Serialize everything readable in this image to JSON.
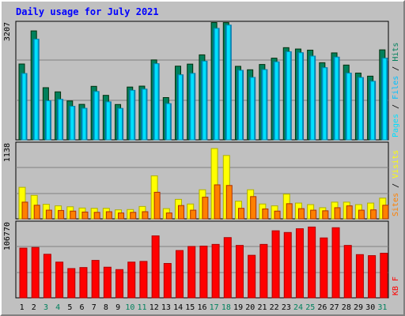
{
  "title": "Daily usage for July 2021",
  "colors": {
    "hits": "#00805c",
    "files": "#00c0ff",
    "pages": "#00e0ff",
    "visits": "#ffff00",
    "sites": "#ff8000",
    "kbf": "#ff0000",
    "plot_bg": "#c0c0c0",
    "weekend": "#00805c",
    "weekday": "#000000"
  },
  "chart_data": [
    {
      "type": "bar",
      "ymax_label": "3207",
      "ylim": [
        0,
        3207
      ],
      "legend": [
        "Pages",
        "Files",
        "Hits"
      ],
      "categories": [
        "1",
        "2",
        "3",
        "4",
        "5",
        "6",
        "7",
        "8",
        "9",
        "10",
        "11",
        "12",
        "13",
        "14",
        "15",
        "16",
        "17",
        "18",
        "19",
        "20",
        "21",
        "22",
        "23",
        "24",
        "25",
        "26",
        "27",
        "28",
        "29",
        "30",
        "31"
      ],
      "weekend_days": [
        "3",
        "4",
        "10",
        "11",
        "17",
        "18",
        "24",
        "25",
        "31"
      ],
      "series": [
        {
          "name": "Hits",
          "values": [
            2080,
            2988,
            1430,
            1316,
            1066,
            973,
            1467,
            1220,
            969,
            1448,
            1473,
            2192,
            1159,
            2021,
            2077,
            2331,
            3217,
            3216,
            2016,
            1922,
            2067,
            2240,
            2528,
            2491,
            2460,
            2115,
            2385,
            2051,
            1831,
            1747,
            2468
          ]
        },
        {
          "name": "Files",
          "values": [
            1820,
            2760,
            1070,
            1110,
            920,
            864,
            1325,
            1042,
            861,
            1357,
            1390,
            2088,
            992,
            1783,
            1822,
            2157,
            3057,
            3146,
            1906,
            1712,
            1925,
            2138,
            2417,
            2389,
            2296,
            1978,
            2268,
            1829,
            1708,
            1605,
            2238
          ]
        },
        {
          "name": "Pages",
          "values": [
            1820,
            2760,
            1070,
            1110,
            920,
            864,
            1325,
            1042,
            861,
            1357,
            1390,
            2088,
            992,
            1783,
            1822,
            2157,
            3057,
            3146,
            1906,
            1712,
            1925,
            2138,
            2417,
            2389,
            2296,
            1978,
            2268,
            1829,
            1708,
            1605,
            2238
          ]
        }
      ]
    },
    {
      "type": "bar",
      "ymax_label": "1138",
      "ylim": [
        0,
        1138
      ],
      "legend": [
        "Sites",
        "Visits"
      ],
      "categories": [
        "1",
        "2",
        "3",
        "4",
        "5",
        "6",
        "7",
        "8",
        "9",
        "10",
        "11",
        "12",
        "13",
        "14",
        "15",
        "16",
        "17",
        "18",
        "19",
        "20",
        "21",
        "22",
        "23",
        "24",
        "25",
        "26",
        "27",
        "28",
        "29",
        "30",
        "31"
      ],
      "series": [
        {
          "name": "Visits",
          "values": [
            510,
            380,
            235,
            210,
            195,
            175,
            170,
            170,
            145,
            150,
            200,
            695,
            165,
            315,
            240,
            470,
            1138,
            1025,
            285,
            470,
            240,
            210,
            400,
            255,
            230,
            180,
            270,
            270,
            230,
            255,
            335
          ]
        },
        {
          "name": "Sites",
          "values": [
            270,
            220,
            140,
            135,
            125,
            110,
            105,
            115,
            95,
            105,
            115,
            430,
            95,
            215,
            140,
            350,
            550,
            540,
            170,
            360,
            160,
            125,
            245,
            165,
            140,
            130,
            180,
            210,
            140,
            145,
            220
          ]
        }
      ]
    },
    {
      "type": "bar",
      "ymax_label": "106770",
      "ylim": [
        0,
        106770
      ],
      "legend": [
        "KB F"
      ],
      "categories": [
        "1",
        "2",
        "3",
        "4",
        "5",
        "6",
        "7",
        "8",
        "9",
        "10",
        "11",
        "12",
        "13",
        "14",
        "15",
        "16",
        "17",
        "18",
        "19",
        "20",
        "21",
        "22",
        "23",
        "24",
        "25",
        "26",
        "27",
        "28",
        "29",
        "30",
        "31"
      ],
      "series": [
        {
          "name": "KB F",
          "values": [
            73000,
            74000,
            64000,
            52500,
            43000,
            44500,
            55000,
            45000,
            41500,
            52500,
            53500,
            91000,
            50500,
            69500,
            75500,
            76000,
            78500,
            88500,
            77000,
            62500,
            78500,
            98500,
            96000,
            101500,
            104000,
            88000,
            103000,
            77000,
            63500,
            62000,
            65500
          ]
        }
      ]
    }
  ]
}
